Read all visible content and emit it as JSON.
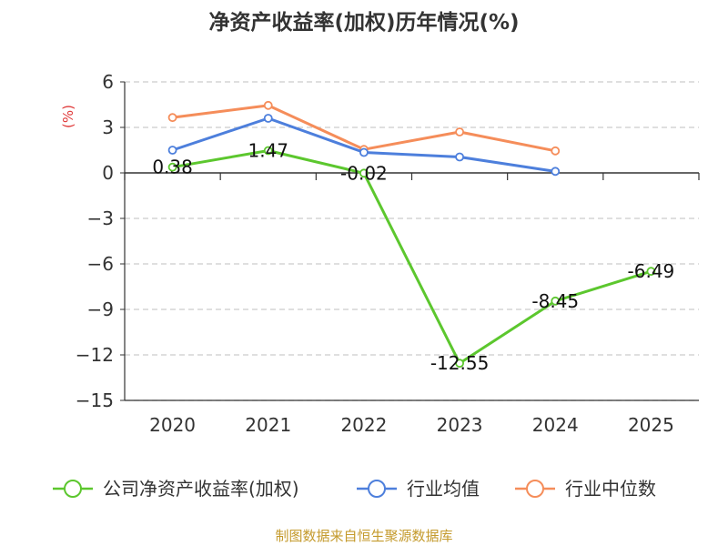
{
  "chart_data": {
    "type": "line",
    "title": "净资产收益率(加权)历年情况(%)",
    "ylabel": "(%)",
    "categories": [
      "2020",
      "2021",
      "2022",
      "2023",
      "2024",
      "2025"
    ],
    "ylim": [
      -15,
      6
    ],
    "yticks": [
      6,
      3,
      0,
      -3,
      -6,
      -9,
      -12,
      -15
    ],
    "ytick_labels": [
      "6",
      "3",
      "0",
      "−3",
      "−6",
      "−9",
      "−12",
      "−15"
    ],
    "grid": true,
    "legend_position": "bottom",
    "series": [
      {
        "name": "公司净资产收益率(加权)",
        "color": "#5cc72e",
        "values": [
          0.38,
          1.47,
          -0.02,
          -12.55,
          -8.45,
          -6.49
        ],
        "labels": [
          "0.38",
          "1.47",
          "-0.02",
          "-12.55",
          "-8.45",
          "-6.49"
        ]
      },
      {
        "name": "行业均值",
        "color": "#4d7fdc",
        "values": [
          1.5,
          3.6,
          1.35,
          1.05,
          0.1,
          null
        ]
      },
      {
        "name": "行业中位数",
        "color": "#f58d5a",
        "values": [
          3.65,
          4.45,
          1.55,
          2.7,
          1.45,
          null
        ]
      }
    ]
  },
  "source": "制图数据来自恒生聚源数据库"
}
